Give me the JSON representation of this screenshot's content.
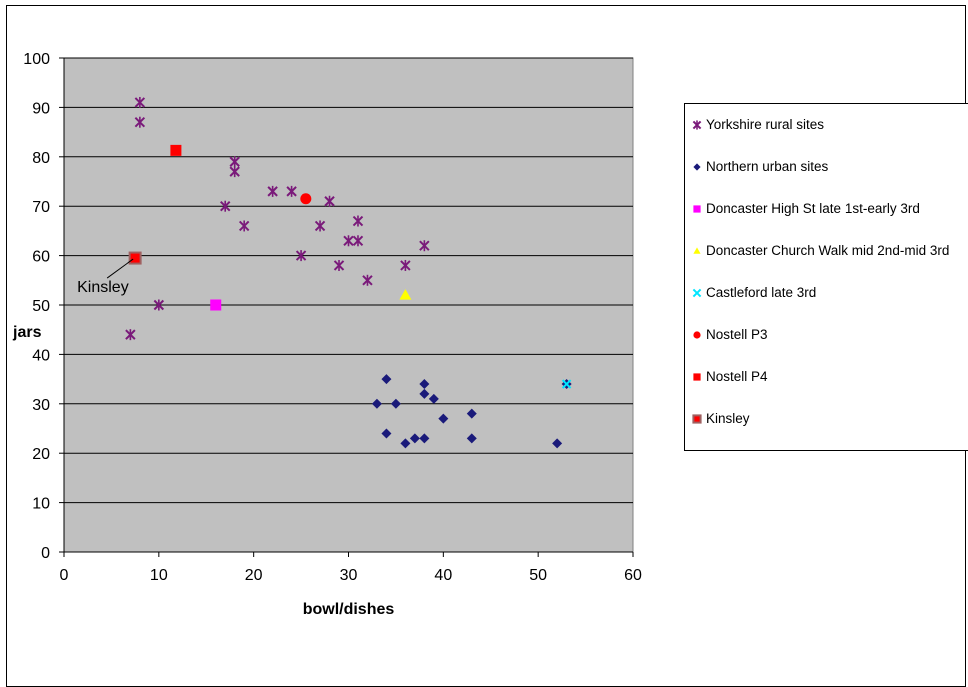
{
  "chart_data": {
    "type": "scatter",
    "title": "",
    "xlabel": "bowl/dishes",
    "ylabel": "jars",
    "xlim": [
      0,
      60
    ],
    "ylim": [
      0,
      100
    ],
    "x_ticks": [
      0,
      10,
      20,
      30,
      40,
      50,
      60
    ],
    "y_ticks": [
      0,
      10,
      20,
      30,
      40,
      50,
      60,
      70,
      80,
      90,
      100
    ],
    "grid": "horizontal",
    "plot_background": "#c0c0c0",
    "legend_position": "right",
    "annotations": [
      {
        "text": "Kinsley",
        "x": 7.5,
        "y": 59.5
      }
    ],
    "series": [
      {
        "name": "Yorkshire rural sites",
        "marker": "star",
        "color": "#7a1a7a",
        "points": [
          [
            8,
            91
          ],
          [
            8,
            87
          ],
          [
            18,
            79
          ],
          [
            18,
            77
          ],
          [
            17,
            70
          ],
          [
            22,
            73
          ],
          [
            24,
            73
          ],
          [
            19,
            66
          ],
          [
            28,
            71
          ],
          [
            27,
            66
          ],
          [
            25,
            60
          ],
          [
            31,
            67
          ],
          [
            30,
            63
          ],
          [
            31,
            63
          ],
          [
            29,
            58
          ],
          [
            32,
            55
          ],
          [
            36,
            58
          ],
          [
            38,
            62
          ],
          [
            10,
            50
          ],
          [
            7,
            44
          ]
        ]
      },
      {
        "name": "Northern urban sites",
        "marker": "diamond",
        "color": "#1a1a7a",
        "points": [
          [
            34,
            35
          ],
          [
            38,
            34
          ],
          [
            38,
            32
          ],
          [
            39,
            31
          ],
          [
            33,
            30
          ],
          [
            35,
            30
          ],
          [
            40,
            27
          ],
          [
            43,
            28
          ],
          [
            34,
            24
          ],
          [
            36,
            22
          ],
          [
            37,
            23
          ],
          [
            38,
            23
          ],
          [
            43,
            23
          ],
          [
            52,
            22
          ],
          [
            53,
            34
          ]
        ]
      },
      {
        "name": "Doncaster High St late 1st-early 3rd",
        "marker": "square",
        "color": "#ff00ff",
        "points": [
          [
            16,
            50
          ]
        ]
      },
      {
        "name": "Doncaster Church Walk mid 2nd-mid 3rd",
        "marker": "triangle",
        "color": "#ffff00",
        "points": [
          [
            36,
            52
          ]
        ]
      },
      {
        "name": "Castleford late 3rd",
        "marker": "x",
        "color": "#00e5ff",
        "points": [
          [
            53,
            34
          ]
        ]
      },
      {
        "name": "Nostell P3",
        "marker": "circle",
        "color": "#ff0000",
        "points": [
          [
            25.5,
            71.5
          ]
        ]
      },
      {
        "name": "Nostell P4",
        "marker": "square",
        "color": "#ff0000",
        "points": [
          [
            11.8,
            81.3
          ]
        ]
      },
      {
        "name": "Kinsley",
        "marker": "square-bordered",
        "color": "#ff0000",
        "points": [
          [
            7.5,
            59.5
          ]
        ]
      }
    ]
  }
}
